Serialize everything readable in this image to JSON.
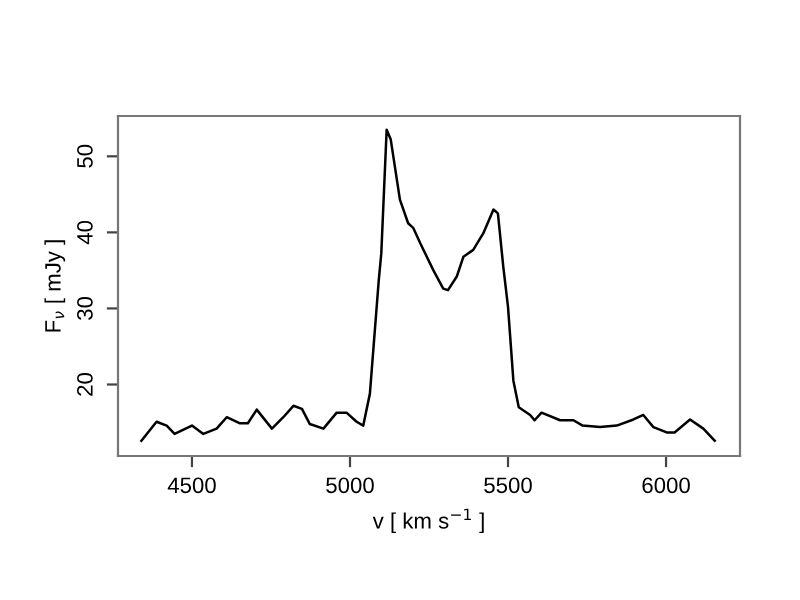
{
  "chart_data": {
    "type": "line",
    "xlabel": "v [ km s$^{−1}$ ]",
    "ylabel": "F$_{ν}$ [ mJy ]",
    "color": "#000000",
    "marker": "none",
    "line_style": "solid",
    "grid": false,
    "legend": false,
    "xlim": [
      4266,
      6234
    ],
    "ylim": [
      10.6,
      55.3
    ],
    "xticks": [
      4500,
      5000,
      5500,
      6000
    ],
    "yticks": [
      20,
      30,
      40,
      50
    ],
    "x": [
      4340,
      4388,
      4420,
      4445,
      4500,
      4536,
      4578,
      4610,
      4652,
      4677,
      4705,
      4753,
      4789,
      4821,
      4848,
      4873,
      4916,
      4958,
      4989,
      5021,
      5042,
      5063,
      5091,
      5099,
      5116,
      5129,
      5158,
      5184,
      5200,
      5222,
      5264,
      5295,
      5310,
      5338,
      5359,
      5390,
      5422,
      5454,
      5468,
      5485,
      5500,
      5517,
      5534,
      5570,
      5584,
      5606,
      5665,
      5707,
      5736,
      5791,
      5844,
      5897,
      5928,
      5960,
      6002,
      6027,
      6076,
      6118,
      6154
    ],
    "values": [
      12.6,
      15.1,
      14.6,
      13.5,
      14.6,
      13.5,
      14.2,
      15.7,
      14.9,
      14.9,
      16.7,
      14.2,
      15.7,
      17.2,
      16.8,
      14.8,
      14.2,
      16.3,
      16.3,
      15.1,
      14.6,
      18.8,
      33.7,
      37.2,
      53.5,
      52.2,
      44.3,
      41.2,
      40.6,
      38.6,
      35.0,
      32.6,
      32.4,
      34.2,
      36.8,
      37.7,
      39.9,
      43.0,
      42.5,
      35.5,
      30.2,
      20.5,
      17.0,
      16.0,
      15.3,
      16.3,
      15.3,
      15.3,
      14.6,
      14.4,
      14.6,
      15.4,
      16.0,
      14.4,
      13.7,
      13.7,
      15.4,
      14.2,
      12.6
    ]
  }
}
